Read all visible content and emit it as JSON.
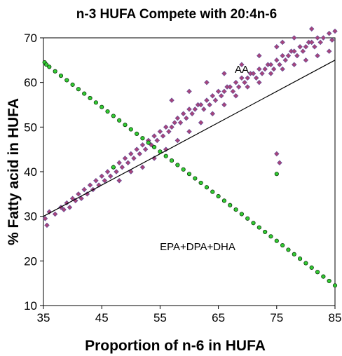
{
  "chart_data": {
    "type": "scatter",
    "title": "n-3 HUFA Compete with 20:4n-6",
    "xlabel": "Proportion of n-6 in HUFA",
    "ylabel": "% Fatty acid in HUFA",
    "xlim": [
      35,
      85
    ],
    "ylim": [
      10,
      70
    ],
    "xticks": [
      "35",
      "45",
      "55",
      "65",
      "75",
      "85"
    ],
    "yticks": [
      "10",
      "20",
      "30",
      "40",
      "50",
      "60",
      "70"
    ],
    "grid": false,
    "legend": "none",
    "annotations": [
      {
        "text": "AA",
        "x": 68.5,
        "y": 61.5
      },
      {
        "text": "EPA+DPA+DHA",
        "x": 67,
        "y": 22.5
      }
    ],
    "series": [
      {
        "name": "AA",
        "marker": "diamond",
        "color": "#a8457a",
        "edge": "#5a4a9a",
        "trend": {
          "x": [
            35,
            85
          ],
          "y": [
            30,
            65
          ]
        },
        "points": [
          [
            35.3,
            29.5
          ],
          [
            35.6,
            28
          ],
          [
            36,
            31
          ],
          [
            37,
            30.5
          ],
          [
            38,
            32
          ],
          [
            38.5,
            31.5
          ],
          [
            39,
            33
          ],
          [
            39.5,
            32
          ],
          [
            40,
            34
          ],
          [
            40.5,
            33.5
          ],
          [
            41,
            35
          ],
          [
            41.5,
            34
          ],
          [
            42,
            36
          ],
          [
            42.5,
            35
          ],
          [
            43,
            37
          ],
          [
            43.5,
            36
          ],
          [
            44,
            38
          ],
          [
            44.5,
            37
          ],
          [
            45,
            39
          ],
          [
            45.5,
            38
          ],
          [
            46,
            40
          ],
          [
            46.5,
            39
          ],
          [
            47,
            41
          ],
          [
            47.5,
            40
          ],
          [
            48,
            42
          ],
          [
            48.5,
            41
          ],
          [
            49,
            43
          ],
          [
            49.5,
            42
          ],
          [
            50,
            44
          ],
          [
            50.5,
            43
          ],
          [
            51,
            45
          ],
          [
            51.5,
            44
          ],
          [
            52,
            46
          ],
          [
            52.5,
            45
          ],
          [
            53,
            47
          ],
          [
            53.5,
            46
          ],
          [
            54,
            48
          ],
          [
            54.5,
            47
          ],
          [
            55,
            49
          ],
          [
            55.5,
            48
          ],
          [
            56,
            50
          ],
          [
            56.5,
            49
          ],
          [
            57,
            50
          ],
          [
            57.5,
            51
          ],
          [
            58,
            52
          ],
          [
            58.5,
            51
          ],
          [
            59,
            53
          ],
          [
            59.5,
            52
          ],
          [
            60,
            54
          ],
          [
            60.5,
            53
          ],
          [
            61,
            54
          ],
          [
            61.5,
            55
          ],
          [
            62,
            55
          ],
          [
            62.5,
            54
          ],
          [
            63,
            56
          ],
          [
            63.5,
            55
          ],
          [
            64,
            57
          ],
          [
            64.5,
            56
          ],
          [
            65,
            58
          ],
          [
            65.5,
            57
          ],
          [
            66,
            58
          ],
          [
            66.5,
            59
          ],
          [
            67,
            59
          ],
          [
            67.5,
            58
          ],
          [
            68,
            60
          ],
          [
            68.5,
            59
          ],
          [
            69,
            61
          ],
          [
            69.5,
            60
          ],
          [
            70,
            61
          ],
          [
            70.5,
            62
          ],
          [
            71,
            62
          ],
          [
            71.5,
            61
          ],
          [
            72,
            63
          ],
          [
            72.5,
            62
          ],
          [
            73,
            63
          ],
          [
            73.5,
            64
          ],
          [
            74,
            64
          ],
          [
            74.5,
            63
          ],
          [
            75,
            65
          ],
          [
            75.5,
            64
          ],
          [
            76,
            66
          ],
          [
            76.5,
            65
          ],
          [
            77,
            66
          ],
          [
            77.5,
            67
          ],
          [
            78,
            67
          ],
          [
            78.5,
            66
          ],
          [
            79,
            68
          ],
          [
            79.5,
            67
          ],
          [
            80,
            68
          ],
          [
            80.5,
            69
          ],
          [
            81,
            69
          ],
          [
            81.5,
            68
          ],
          [
            82,
            70
          ],
          [
            82.5,
            69
          ],
          [
            83,
            70
          ],
          [
            84,
            71
          ],
          [
            85,
            71.5
          ],
          [
            48,
            38
          ],
          [
            50,
            40
          ],
          [
            52,
            41
          ],
          [
            54,
            43
          ],
          [
            56,
            45
          ],
          [
            58,
            47
          ],
          [
            60,
            49
          ],
          [
            62,
            51
          ],
          [
            64,
            53
          ],
          [
            66,
            55
          ],
          [
            68,
            57
          ],
          [
            70,
            59
          ],
          [
            72,
            60
          ],
          [
            74,
            62
          ],
          [
            76,
            63
          ],
          [
            78,
            64
          ],
          [
            80,
            65
          ],
          [
            82,
            66
          ],
          [
            84,
            67
          ],
          [
            57,
            56
          ],
          [
            60,
            58
          ],
          [
            63,
            60
          ],
          [
            66,
            62
          ],
          [
            69,
            64
          ],
          [
            72,
            66
          ],
          [
            75,
            68
          ],
          [
            78,
            70
          ],
          [
            81,
            72
          ],
          [
            75,
            44
          ],
          [
            75.5,
            42
          ],
          [
            84.5,
            69.5
          ],
          [
            76,
            69
          ]
        ]
      },
      {
        "name": "EPA+DPA+DHA",
        "marker": "circle",
        "color": "#33cc33",
        "edge": "#0a3a0a",
        "points": [
          [
            35.2,
            64.5
          ],
          [
            35.5,
            64
          ],
          [
            36,
            63.5
          ],
          [
            37,
            62.5
          ],
          [
            38,
            61.5
          ],
          [
            39,
            60.5
          ],
          [
            40,
            59.5
          ],
          [
            41,
            58.5
          ],
          [
            42,
            57.5
          ],
          [
            43,
            56.5
          ],
          [
            44,
            55.5
          ],
          [
            45,
            54.5
          ],
          [
            46,
            53.5
          ],
          [
            47,
            52.5
          ],
          [
            48,
            51.5
          ],
          [
            49,
            50.5
          ],
          [
            50,
            49.5
          ],
          [
            51,
            48.5
          ],
          [
            52,
            47.5
          ],
          [
            53,
            46.5
          ],
          [
            54,
            45.5
          ],
          [
            55,
            44.5
          ],
          [
            56,
            43.5
          ],
          [
            57,
            42.5
          ],
          [
            58,
            41.5
          ],
          [
            59,
            40.5
          ],
          [
            60,
            39.5
          ],
          [
            61,
            38.5
          ],
          [
            62,
            37.5
          ],
          [
            63,
            36.5
          ],
          [
            64,
            35.5
          ],
          [
            65,
            34.5
          ],
          [
            66,
            33.5
          ],
          [
            67,
            32.5
          ],
          [
            68,
            31.5
          ],
          [
            69,
            30.5
          ],
          [
            70,
            29.5
          ],
          [
            71,
            28.5
          ],
          [
            72,
            27.5
          ],
          [
            73,
            26.5
          ],
          [
            74,
            25.5
          ],
          [
            75,
            24.5
          ],
          [
            76,
            23.5
          ],
          [
            77,
            22.5
          ],
          [
            78,
            21.5
          ],
          [
            79,
            20.5
          ],
          [
            80,
            19.5
          ],
          [
            81,
            18.5
          ],
          [
            82,
            17.5
          ],
          [
            83,
            16.5
          ],
          [
            84,
            15.5
          ],
          [
            85,
            14.5
          ],
          [
            75,
            39.5
          ],
          [
            47,
            41
          ]
        ]
      }
    ]
  }
}
